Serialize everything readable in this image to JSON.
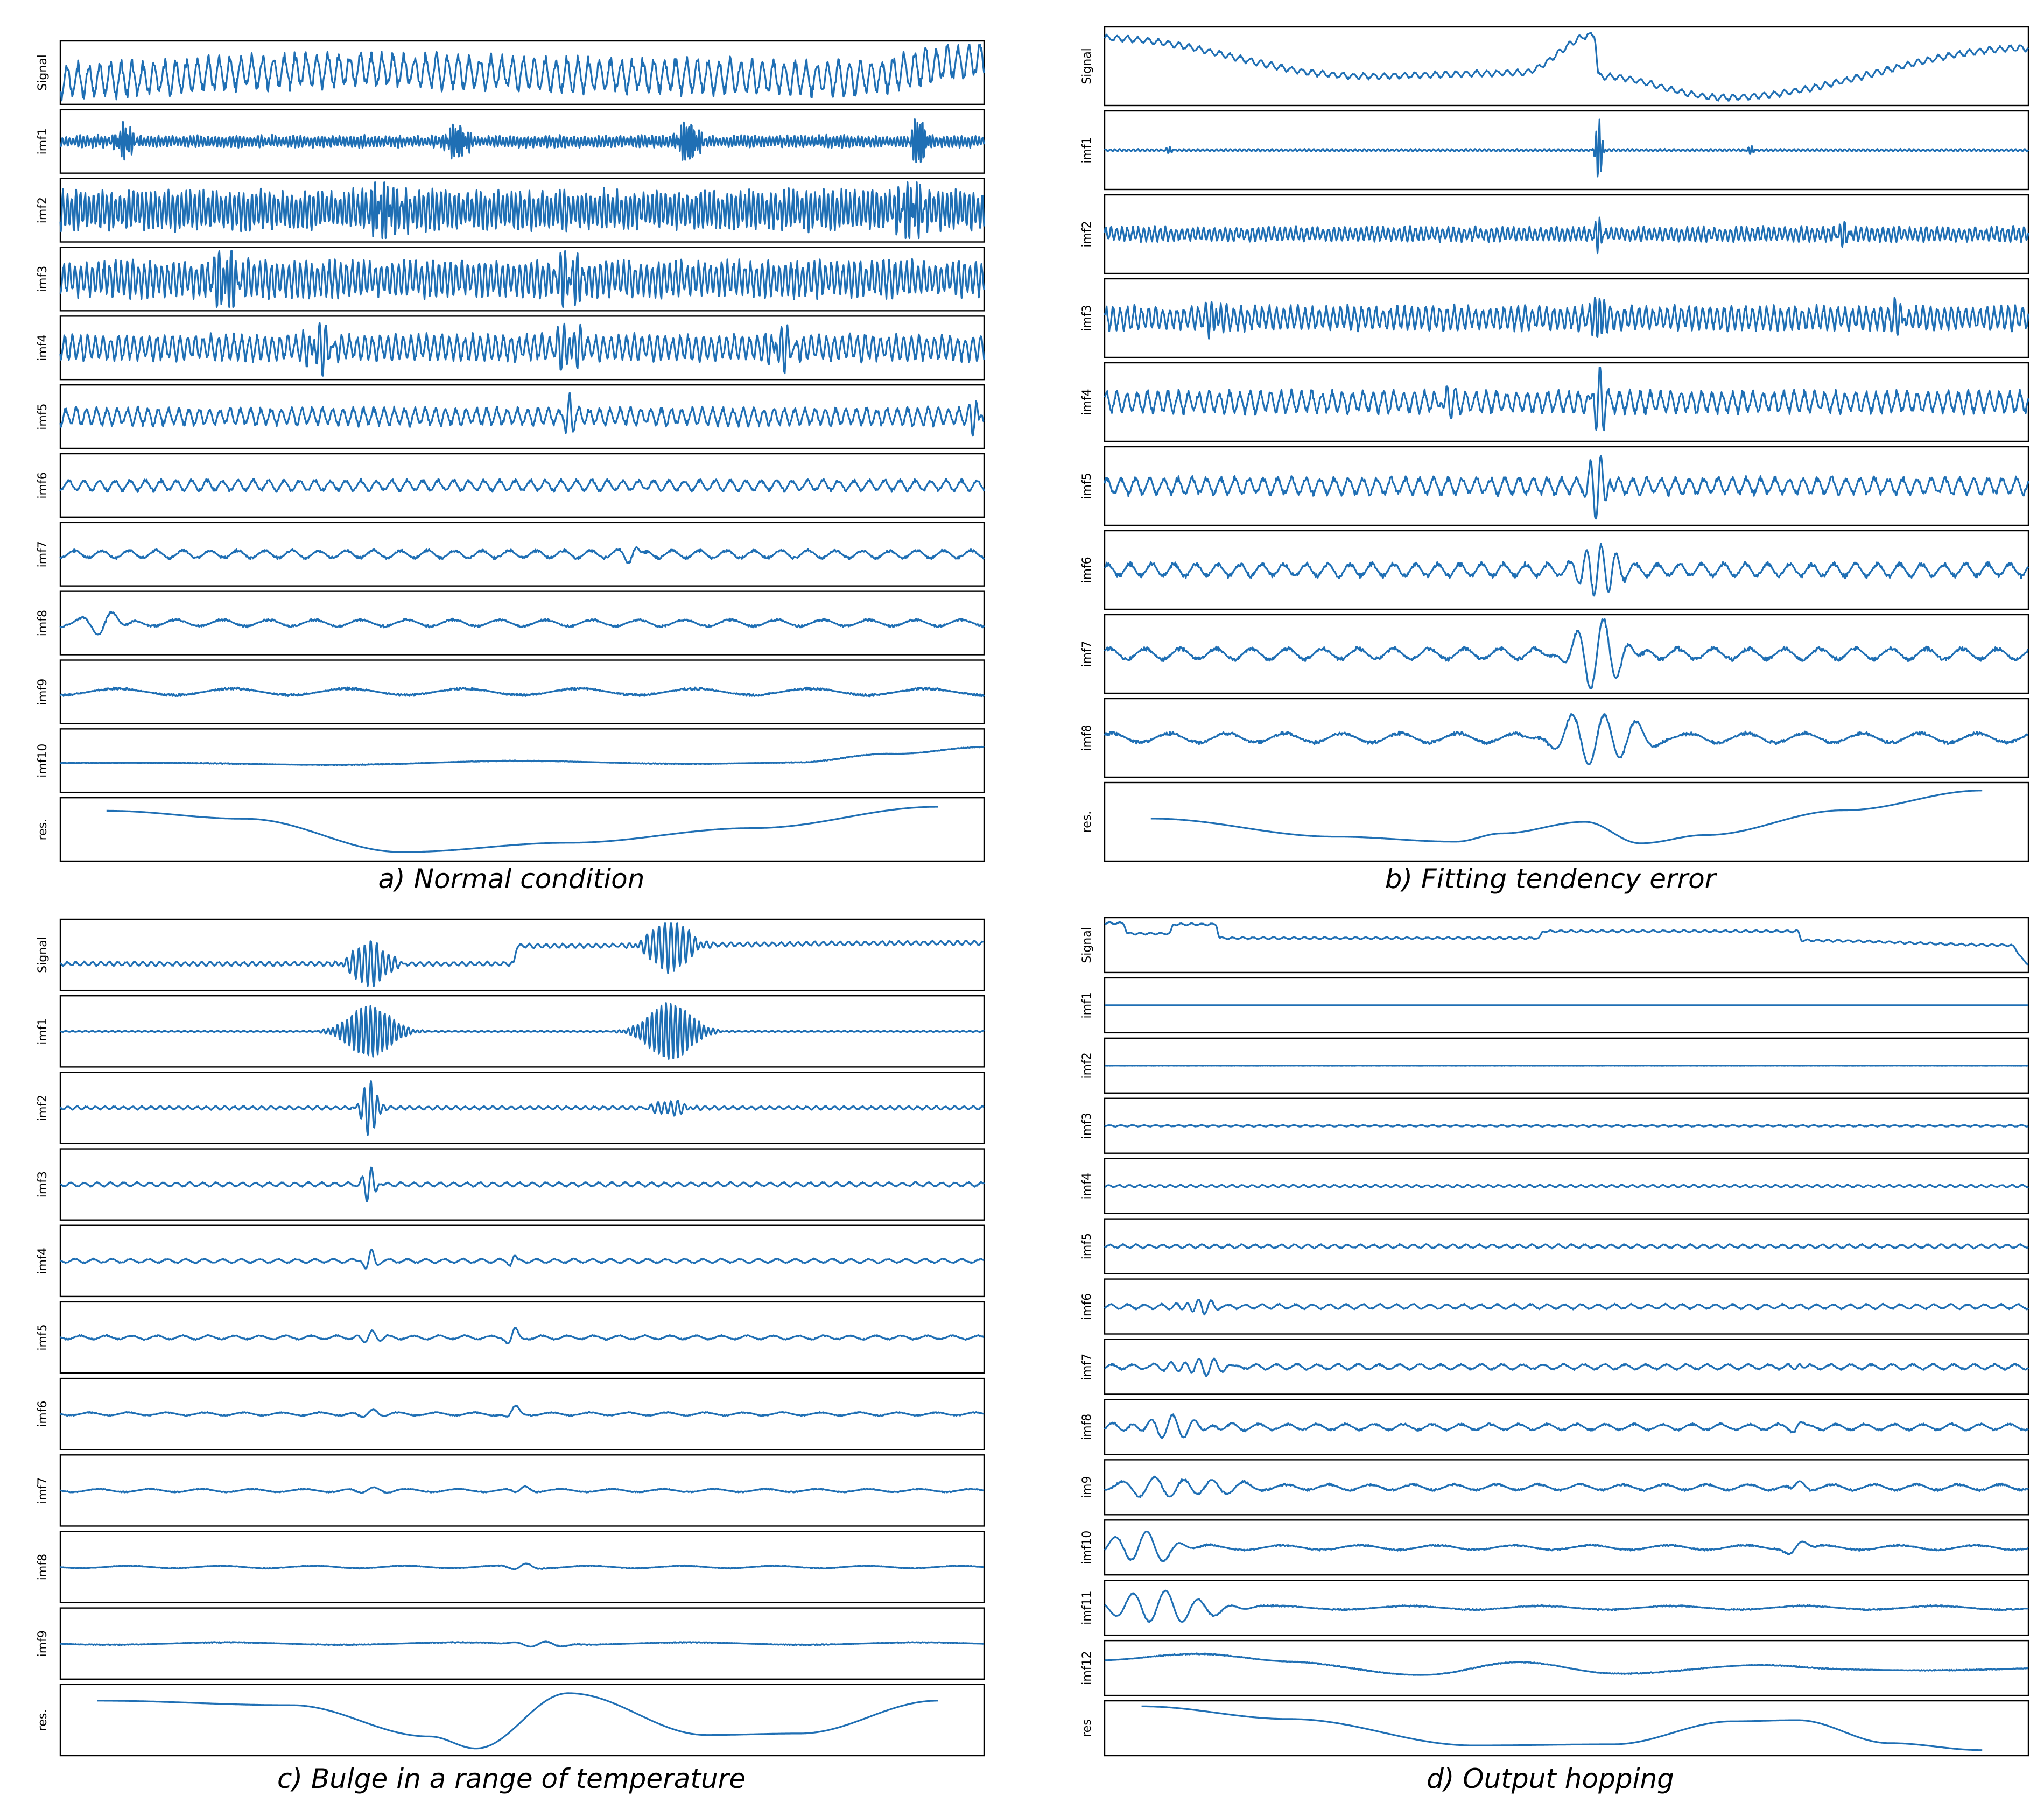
{
  "chart_data": [
    {
      "type": "line",
      "id": "a",
      "caption": "a) Normal condition",
      "row_labels": [
        "Signal",
        "imf1",
        "imf2",
        "imf3",
        "imf4",
        "imf5",
        "imf6",
        "imf7",
        "imf8",
        "imf9",
        "imf10",
        "res."
      ],
      "series_profiles": [
        {
          "name": "Signal",
          "freq": 85,
          "noise": 0.55,
          "trend": [
            [
              0,
              -0.3
            ],
            [
              0.3,
              0.1
            ],
            [
              0.6,
              -0.1
            ],
            [
              0.85,
              -0.2
            ],
            [
              1,
              0.45
            ]
          ],
          "bursts": []
        },
        {
          "name": "imf1",
          "freq": 260,
          "noise": 0.18,
          "trend": [],
          "bursts": [
            [
              0.07,
              0.55,
              0.01
            ],
            [
              0.43,
              0.6,
              0.012
            ],
            [
              0.68,
              0.75,
              0.012
            ],
            [
              0.93,
              0.95,
              0.008
            ]
          ]
        },
        {
          "name": "imf2",
          "freq": 210,
          "noise": 0.6,
          "trend": [],
          "bursts": [
            [
              0.35,
              0.8,
              0.02
            ],
            [
              0.92,
              0.85,
              0.015
            ]
          ]
        },
        {
          "name": "imf3",
          "freq": 160,
          "noise": 0.55,
          "trend": [],
          "bursts": [
            [
              0.18,
              0.9,
              0.015
            ],
            [
              0.55,
              0.7,
              0.015
            ]
          ]
        },
        {
          "name": "imf4",
          "freq": 120,
          "noise": 0.4,
          "trend": [],
          "bursts": [
            [
              0.28,
              0.7,
              0.015
            ],
            [
              0.55,
              0.7,
              0.015
            ],
            [
              0.78,
              0.6,
              0.015
            ]
          ]
        },
        {
          "name": "imf5",
          "freq": 90,
          "noise": 0.28,
          "trend": [],
          "bursts": [
            [
              0.55,
              0.65,
              0.006
            ],
            [
              0.99,
              0.7,
              0.006
            ]
          ]
        },
        {
          "name": "imf6",
          "freq": 60,
          "noise": 0.18,
          "trend": [],
          "bursts": []
        },
        {
          "name": "imf7",
          "freq": 34,
          "noise": 0.14,
          "trend": [],
          "bursts": [
            [
              0.62,
              0.35,
              0.01
            ]
          ]
        },
        {
          "name": "imf8",
          "freq": 20,
          "noise": 0.12,
          "trend": [],
          "bursts": [
            [
              0.05,
              0.55,
              0.02
            ]
          ]
        },
        {
          "name": "imf9",
          "freq": 8,
          "noise": 0.12,
          "trend": [],
          "bursts": []
        },
        {
          "name": "imf10",
          "freq": 3,
          "noise": 0.04,
          "trend": [
            [
              0,
              -0.05
            ],
            [
              0.2,
              -0.15
            ],
            [
              0.5,
              -0.05
            ],
            [
              0.8,
              -0.1
            ],
            [
              0.9,
              0.25
            ],
            [
              1,
              0.55
            ]
          ],
          "bursts": []
        },
        {
          "name": "res.",
          "freq": 0,
          "noise": 0,
          "trend": [
            [
              0.05,
              0.7
            ],
            [
              0.2,
              0.4
            ],
            [
              0.37,
              -0.85
            ],
            [
              0.55,
              -0.5
            ],
            [
              0.75,
              0.05
            ],
            [
              0.95,
              0.85
            ]
          ],
          "bursts": []
        }
      ]
    },
    {
      "type": "line",
      "id": "b",
      "caption": "b) Fitting tendency error",
      "row_labels": [
        "Signal",
        "imf1",
        "imf2",
        "imf3",
        "imf4",
        "imf5",
        "imf6",
        "imf7",
        "imf8",
        "res."
      ],
      "series_profiles": [
        {
          "name": "Signal",
          "freq": 90,
          "noise": 0.08,
          "trend": [
            [
              0,
              0.85
            ],
            [
              0.28,
              -0.3
            ],
            [
              0.45,
              -0.2
            ],
            [
              0.53,
              0.95
            ],
            [
              0.535,
              -0.3
            ],
            [
              0.67,
              -0.95
            ],
            [
              1,
              0.55
            ]
          ],
          "bursts": []
        },
        {
          "name": "imf1",
          "freq": 200,
          "noise": 0.03,
          "trend": [],
          "bursts": [
            [
              0.535,
              0.95,
              0.004
            ],
            [
              0.07,
              0.08,
              0.005
            ],
            [
              0.7,
              0.1,
              0.005
            ]
          ]
        },
        {
          "name": "imf2",
          "freq": 170,
          "noise": 0.18,
          "trend": [],
          "bursts": [
            [
              0.535,
              0.35,
              0.006
            ],
            [
              0.8,
              0.25,
              0.01
            ]
          ]
        },
        {
          "name": "imf3",
          "freq": 130,
          "noise": 0.3,
          "trend": [],
          "bursts": [
            [
              0.535,
              0.9,
              0.006
            ],
            [
              0.12,
              0.5,
              0.008
            ],
            [
              0.86,
              0.4,
              0.008
            ]
          ]
        },
        {
          "name": "imf4",
          "freq": 90,
          "noise": 0.28,
          "trend": [],
          "bursts": [
            [
              0.535,
              0.9,
              0.008
            ],
            [
              0.37,
              0.45,
              0.008
            ]
          ]
        },
        {
          "name": "imf5",
          "freq": 65,
          "noise": 0.22,
          "trend": [],
          "bursts": [
            [
              0.535,
              0.95,
              0.012
            ]
          ]
        },
        {
          "name": "imf6",
          "freq": 42,
          "noise": 0.18,
          "trend": [],
          "bursts": [
            [
              0.535,
              0.95,
              0.02
            ]
          ]
        },
        {
          "name": "imf7",
          "freq": 26,
          "noise": 0.16,
          "trend": [],
          "bursts": [
            [
              0.535,
              0.95,
              0.035
            ]
          ]
        },
        {
          "name": "imf8",
          "freq": 16,
          "noise": 0.14,
          "trend": [],
          "bursts": [
            [
              0.535,
              0.85,
              0.045
            ]
          ]
        },
        {
          "name": "res.",
          "freq": 0,
          "noise": 0,
          "trend": [
            [
              0.05,
              0.1
            ],
            [
              0.25,
              -0.45
            ],
            [
              0.38,
              -0.6
            ],
            [
              0.43,
              -0.35
            ],
            [
              0.52,
              0.0
            ],
            [
              0.58,
              -0.65
            ],
            [
              0.65,
              -0.4
            ],
            [
              0.8,
              0.35
            ],
            [
              0.95,
              0.95
            ]
          ],
          "bursts": []
        }
      ]
    },
    {
      "type": "line",
      "id": "c",
      "caption": "c) Bulge in a range of temperature",
      "row_labels": [
        "Signal",
        "imf1",
        "imf2",
        "imf3",
        "imf4",
        "imf5",
        "imf6",
        "imf7",
        "imf8",
        "imf9",
        "res."
      ],
      "series_profiles": [
        {
          "name": "Signal",
          "freq": 110,
          "noise": 0.06,
          "trend": [
            [
              0,
              -0.3
            ],
            [
              0.49,
              -0.3
            ],
            [
              0.495,
              0.3
            ],
            [
              1,
              0.4
            ]
          ],
          "bursts": [
            [
              0.335,
              0.75,
              0.022
            ],
            [
              0.66,
              0.9,
              0.025
            ]
          ]
        },
        {
          "name": "imf1",
          "freq": 140,
          "noise": 0.02,
          "trend": [],
          "bursts": [
            [
              0.335,
              0.85,
              0.03
            ],
            [
              0.66,
              0.95,
              0.03
            ]
          ]
        },
        {
          "name": "imf2",
          "freq": 100,
          "noise": 0.05,
          "trend": [],
          "bursts": [
            [
              0.335,
              0.9,
              0.01
            ],
            [
              0.66,
              0.25,
              0.02
            ]
          ]
        },
        {
          "name": "imf3",
          "freq": 70,
          "noise": 0.06,
          "trend": [],
          "bursts": [
            [
              0.335,
              0.6,
              0.008
            ]
          ]
        },
        {
          "name": "imf4",
          "freq": 50,
          "noise": 0.06,
          "trend": [],
          "bursts": [
            [
              0.335,
              0.35,
              0.008
            ],
            [
              0.49,
              0.2,
              0.005
            ]
          ]
        },
        {
          "name": "imf5",
          "freq": 36,
          "noise": 0.06,
          "trend": [],
          "bursts": [
            [
              0.335,
              0.3,
              0.012
            ],
            [
              0.49,
              0.3,
              0.008
            ]
          ]
        },
        {
          "name": "imf6",
          "freq": 24,
          "noise": 0.05,
          "trend": [],
          "bursts": [
            [
              0.335,
              0.2,
              0.015
            ],
            [
              0.49,
              0.3,
              0.008
            ]
          ]
        },
        {
          "name": "imf7",
          "freq": 18,
          "noise": 0.05,
          "trend": [],
          "bursts": [
            [
              0.335,
              0.15,
              0.02
            ],
            [
              0.5,
              0.2,
              0.01
            ]
          ]
        },
        {
          "name": "imf8",
          "freq": 10,
          "noise": 0.04,
          "trend": [],
          "bursts": [
            [
              0.5,
              0.15,
              0.015
            ]
          ]
        },
        {
          "name": "imf9",
          "freq": 4,
          "noise": 0.04,
          "trend": [],
          "bursts": [
            [
              0.52,
              0.1,
              0.03
            ]
          ]
        },
        {
          "name": "res.",
          "freq": 0,
          "noise": 0,
          "trend": [
            [
              0.04,
              0.65
            ],
            [
              0.25,
              0.5
            ],
            [
              0.4,
              -0.55
            ],
            [
              0.45,
              -0.95
            ],
            [
              0.55,
              0.9
            ],
            [
              0.7,
              -0.5
            ],
            [
              0.8,
              -0.45
            ],
            [
              0.95,
              0.65
            ]
          ],
          "bursts": []
        }
      ]
    },
    {
      "type": "line",
      "id": "d",
      "caption": "d) Output hopping",
      "row_labels": [
        "Signal",
        "imf1",
        "imf2",
        "imf3",
        "imf4",
        "imf5",
        "imf6",
        "imf7",
        "imf8",
        "im9",
        "imf10",
        "imf11",
        "imf12",
        "res"
      ],
      "series_profiles": [
        {
          "name": "Signal",
          "freq": 90,
          "noise": 0.04,
          "trend": [
            [
              0,
              0.95
            ],
            [
              0.02,
              0.95
            ],
            [
              0.025,
              0.5
            ],
            [
              0.07,
              0.5
            ],
            [
              0.075,
              0.9
            ],
            [
              0.12,
              0.9
            ],
            [
              0.125,
              0.3
            ],
            [
              0.47,
              0.3
            ],
            [
              0.475,
              0.6
            ],
            [
              0.75,
              0.6
            ],
            [
              0.755,
              0.2
            ],
            [
              0.98,
              0.0
            ],
            [
              1,
              -0.8
            ]
          ],
          "bursts": []
        },
        {
          "name": "imf1",
          "freq": 0,
          "noise": 0.0,
          "trend": [],
          "bursts": []
        },
        {
          "name": "imf2",
          "freq": 0,
          "noise": 0.01,
          "trend": [],
          "bursts": []
        },
        {
          "name": "imf3",
          "freq": 80,
          "noise": 0.03,
          "trend": [],
          "bursts": []
        },
        {
          "name": "imf4",
          "freq": 90,
          "noise": 0.05,
          "trend": [],
          "bursts": []
        },
        {
          "name": "imf5",
          "freq": 70,
          "noise": 0.07,
          "trend": [],
          "bursts": []
        },
        {
          "name": "imf6",
          "freq": 55,
          "noise": 0.09,
          "trend": [],
          "bursts": [
            [
              0.1,
              0.3,
              0.02
            ]
          ]
        },
        {
          "name": "imf7",
          "freq": 45,
          "noise": 0.1,
          "trend": [],
          "bursts": [
            [
              0.1,
              0.35,
              0.03
            ],
            [
              0.75,
              0.2,
              0.008
            ]
          ]
        },
        {
          "name": "imf8",
          "freq": 32,
          "noise": 0.12,
          "trend": [],
          "bursts": [
            [
              0.07,
              0.4,
              0.05
            ],
            [
              0.75,
              0.25,
              0.008
            ]
          ]
        },
        {
          "name": "im9",
          "freq": 22,
          "noise": 0.12,
          "trend": [],
          "bursts": [
            [
              0.08,
              0.45,
              0.06
            ],
            [
              0.75,
              0.3,
              0.01
            ]
          ]
        },
        {
          "name": "imf10",
          "freq": 12,
          "noise": 0.1,
          "trend": [],
          "bursts": [
            [
              0.04,
              0.7,
              0.04
            ],
            [
              0.75,
              0.3,
              0.015
            ]
          ]
        },
        {
          "name": "imf11",
          "freq": 7,
          "noise": 0.08,
          "trend": [],
          "bursts": [
            [
              0.06,
              0.7,
              0.06
            ]
          ]
        },
        {
          "name": "imf12",
          "freq": 3,
          "noise": 0.06,
          "trend": [
            [
              0,
              0.35
            ],
            [
              0.1,
              0.55
            ],
            [
              0.2,
              0.3
            ],
            [
              0.35,
              -0.3
            ],
            [
              0.45,
              0.2
            ],
            [
              0.55,
              -0.2
            ],
            [
              0.7,
              0.1
            ],
            [
              0.8,
              -0.1
            ],
            [
              1,
              0.0
            ]
          ],
          "bursts": []
        },
        {
          "name": "res",
          "freq": 0,
          "noise": 0,
          "trend": [
            [
              0.04,
              0.95
            ],
            [
              0.2,
              0.4
            ],
            [
              0.4,
              -0.75
            ],
            [
              0.55,
              -0.7
            ],
            [
              0.68,
              0.3
            ],
            [
              0.75,
              0.35
            ],
            [
              0.85,
              -0.65
            ],
            [
              0.95,
              -0.95
            ]
          ],
          "bursts": []
        }
      ]
    }
  ]
}
